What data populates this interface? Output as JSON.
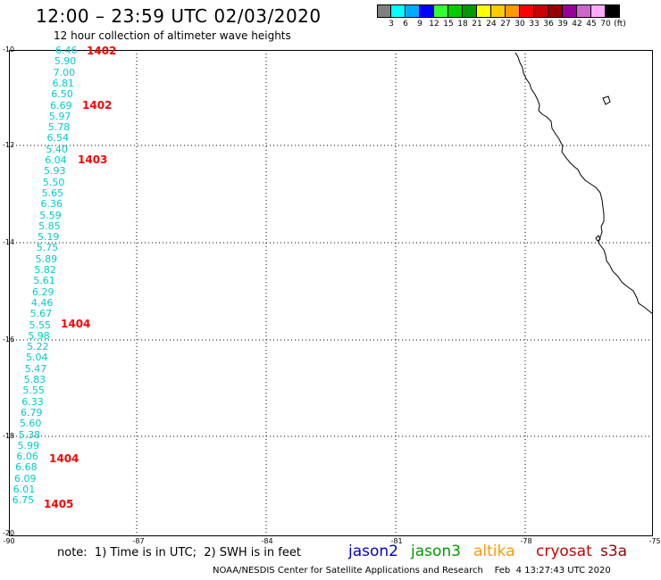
{
  "title": "12:00 – 23:59 UTC 02/03/2020",
  "subtitle": "12 hour collection of altimeter wave heights",
  "colorbar": {
    "colors": [
      "#808080",
      "#00ffff",
      "#00aaff",
      "#0000ff",
      "#33ff33",
      "#00cc00",
      "#009900",
      "#ffff00",
      "#ffcc00",
      "#ff9900",
      "#ff0000",
      "#cc0000",
      "#990000",
      "#990099",
      "#cc66cc",
      "#ffaaff",
      "#000000"
    ],
    "labels": [
      "3",
      "6",
      "9",
      "12",
      "15",
      "18",
      "21",
      "24",
      "27",
      "30",
      "33",
      "36",
      "39",
      "42",
      "45",
      "70",
      "(ft)"
    ]
  },
  "axes": {
    "lat_labels": [
      "-10",
      "-12",
      "-14",
      "-16",
      "-18",
      "-20"
    ],
    "lon_labels": [
      "-90",
      "-87",
      "-84",
      "-81",
      "-78",
      "-75"
    ],
    "lat_range": [
      -20,
      -10
    ],
    "lon_range": [
      -90,
      -75
    ],
    "grid": "dotted"
  },
  "track": {
    "swh_values": [
      "6.46",
      "5.90",
      "7.00",
      "6.81",
      "6.50",
      "6.69",
      "5.97",
      "5.78",
      "6.54",
      "5.40",
      "6.04",
      "5.93",
      "5.50",
      "5.65",
      "6.36",
      "5.59",
      "5.85",
      "5.19",
      "5.75",
      "5.89",
      "5.82",
      "5.61",
      "6.29",
      "4.46",
      "5.67",
      "5.55",
      "5.98",
      "5.22",
      "5.04",
      "5.47",
      "5.83",
      "5.55",
      "6.33",
      "6.79",
      "5.60",
      "5.38",
      "5.99",
      "6.06",
      "6.68",
      "6.09",
      "6.01",
      "6.75"
    ],
    "swh_color": "#00cccc",
    "pass_times": [
      "1402",
      "1402",
      "1403",
      "1404",
      "1404",
      "1405"
    ],
    "pass_color": "#ff0000"
  },
  "note": "note:  1) Time is in UTC;  2) SWH is in feet",
  "satellites": [
    {
      "name": "jason2",
      "color": "#0000cc"
    },
    {
      "name": "jason3",
      "color": "#009900"
    },
    {
      "name": "altika",
      "color": "#ff9900"
    },
    {
      "name": "cryosat",
      "color": "#cc0000"
    },
    {
      "name": "s3a",
      "color": "#990000"
    }
  ],
  "credit": "NOAA/NESDIS Center for Satellite Applications and Research    Feb  4 13:27:43 UTC 2020"
}
